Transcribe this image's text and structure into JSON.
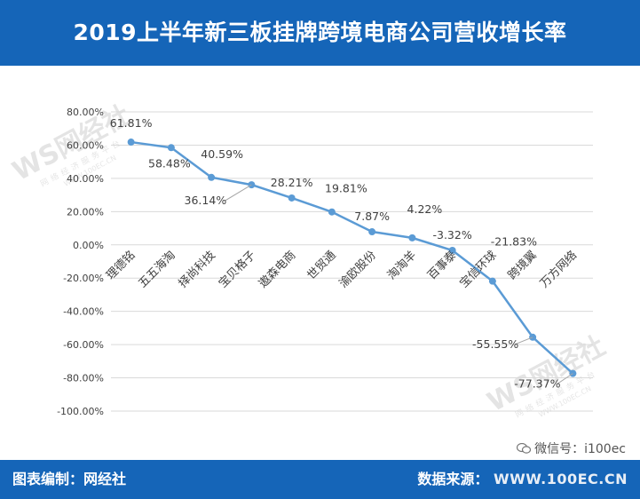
{
  "header": {
    "title": "2019上半年新三板挂牌跨境电商公司营收增长率"
  },
  "footer": {
    "compiled_by": "图表编制：网经社",
    "source_label": "数据来源：",
    "source_url": "WWW.100EC.CN"
  },
  "wechat": {
    "text": "微信号：i100ec"
  },
  "watermark": {
    "brand": "WS网经社",
    "sub": "网络经济服务平台",
    "site": "WWW.100EC.CN"
  },
  "colors": {
    "header_bg": "#1565b8",
    "line": "#5b9bd5",
    "grid": "#d9d9d9",
    "text": "#404040"
  },
  "chart_data": {
    "type": "line",
    "title": "2019上半年新三板挂牌跨境电商公司营收增长率",
    "xlabel": "",
    "ylabel": "",
    "ylim": [
      -100,
      80
    ],
    "yticks": [
      80,
      60,
      40,
      20,
      0,
      -20,
      -40,
      -60,
      -80,
      -100
    ],
    "ytick_labels": [
      "80.00%",
      "60.00%",
      "40.00%",
      "20.00%",
      "0.00%",
      "-20.00%",
      "-40.00%",
      "-60.00%",
      "-80.00%",
      "-100.00%"
    ],
    "grid": true,
    "legend": "none",
    "categories": [
      "理德铭",
      "五五海淘",
      "择尚科技",
      "宝贝格子",
      "遨森电商",
      "世贸通",
      "渝欧股份",
      "淘淘羊",
      "百事泰",
      "宝信环球",
      "跨境翼",
      "万方网络"
    ],
    "values": [
      61.81,
      58.48,
      40.59,
      36.14,
      28.21,
      19.81,
      7.87,
      4.22,
      -3.32,
      -21.83,
      -55.55,
      -77.37
    ],
    "data_labels": [
      "61.81%",
      "58.48%",
      "40.59%",
      "36.14%",
      "28.21%",
      "19.81%",
      "7.87%",
      "4.22%",
      "-3.32%",
      "-21.83%",
      "-55.55%",
      "-77.37%"
    ]
  }
}
